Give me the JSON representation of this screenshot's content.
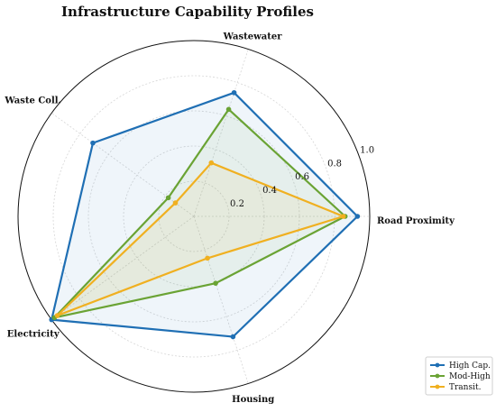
{
  "chart_data": {
    "type": "radar",
    "title": "Infrastructure Capability Profiles",
    "axes": [
      "Road Proximity",
      "Wastewater",
      "Waste Coll.",
      "Electricity",
      "Housing"
    ],
    "rlim": [
      0,
      1.0
    ],
    "rticks": [
      "0.2",
      "0.4",
      "0.6",
      "0.8",
      "1.0"
    ],
    "rtick_values": [
      0.2,
      0.4,
      0.6,
      0.8,
      1.0
    ],
    "grid": true,
    "legend_position": "lower-right",
    "series": [
      {
        "name": "High Cap.",
        "color": "#1f6fb4",
        "fill": true,
        "values": [
          0.93,
          0.74,
          0.71,
          1.0,
          0.72
        ]
      },
      {
        "name": "Mod-High",
        "color": "#6aa334",
        "fill": true,
        "values": [
          0.86,
          0.64,
          0.18,
          0.98,
          0.4
        ]
      },
      {
        "name": "Transit.",
        "color": "#f0b020",
        "fill": true,
        "values": [
          0.85,
          0.32,
          0.13,
          0.96,
          0.25
        ]
      }
    ]
  }
}
